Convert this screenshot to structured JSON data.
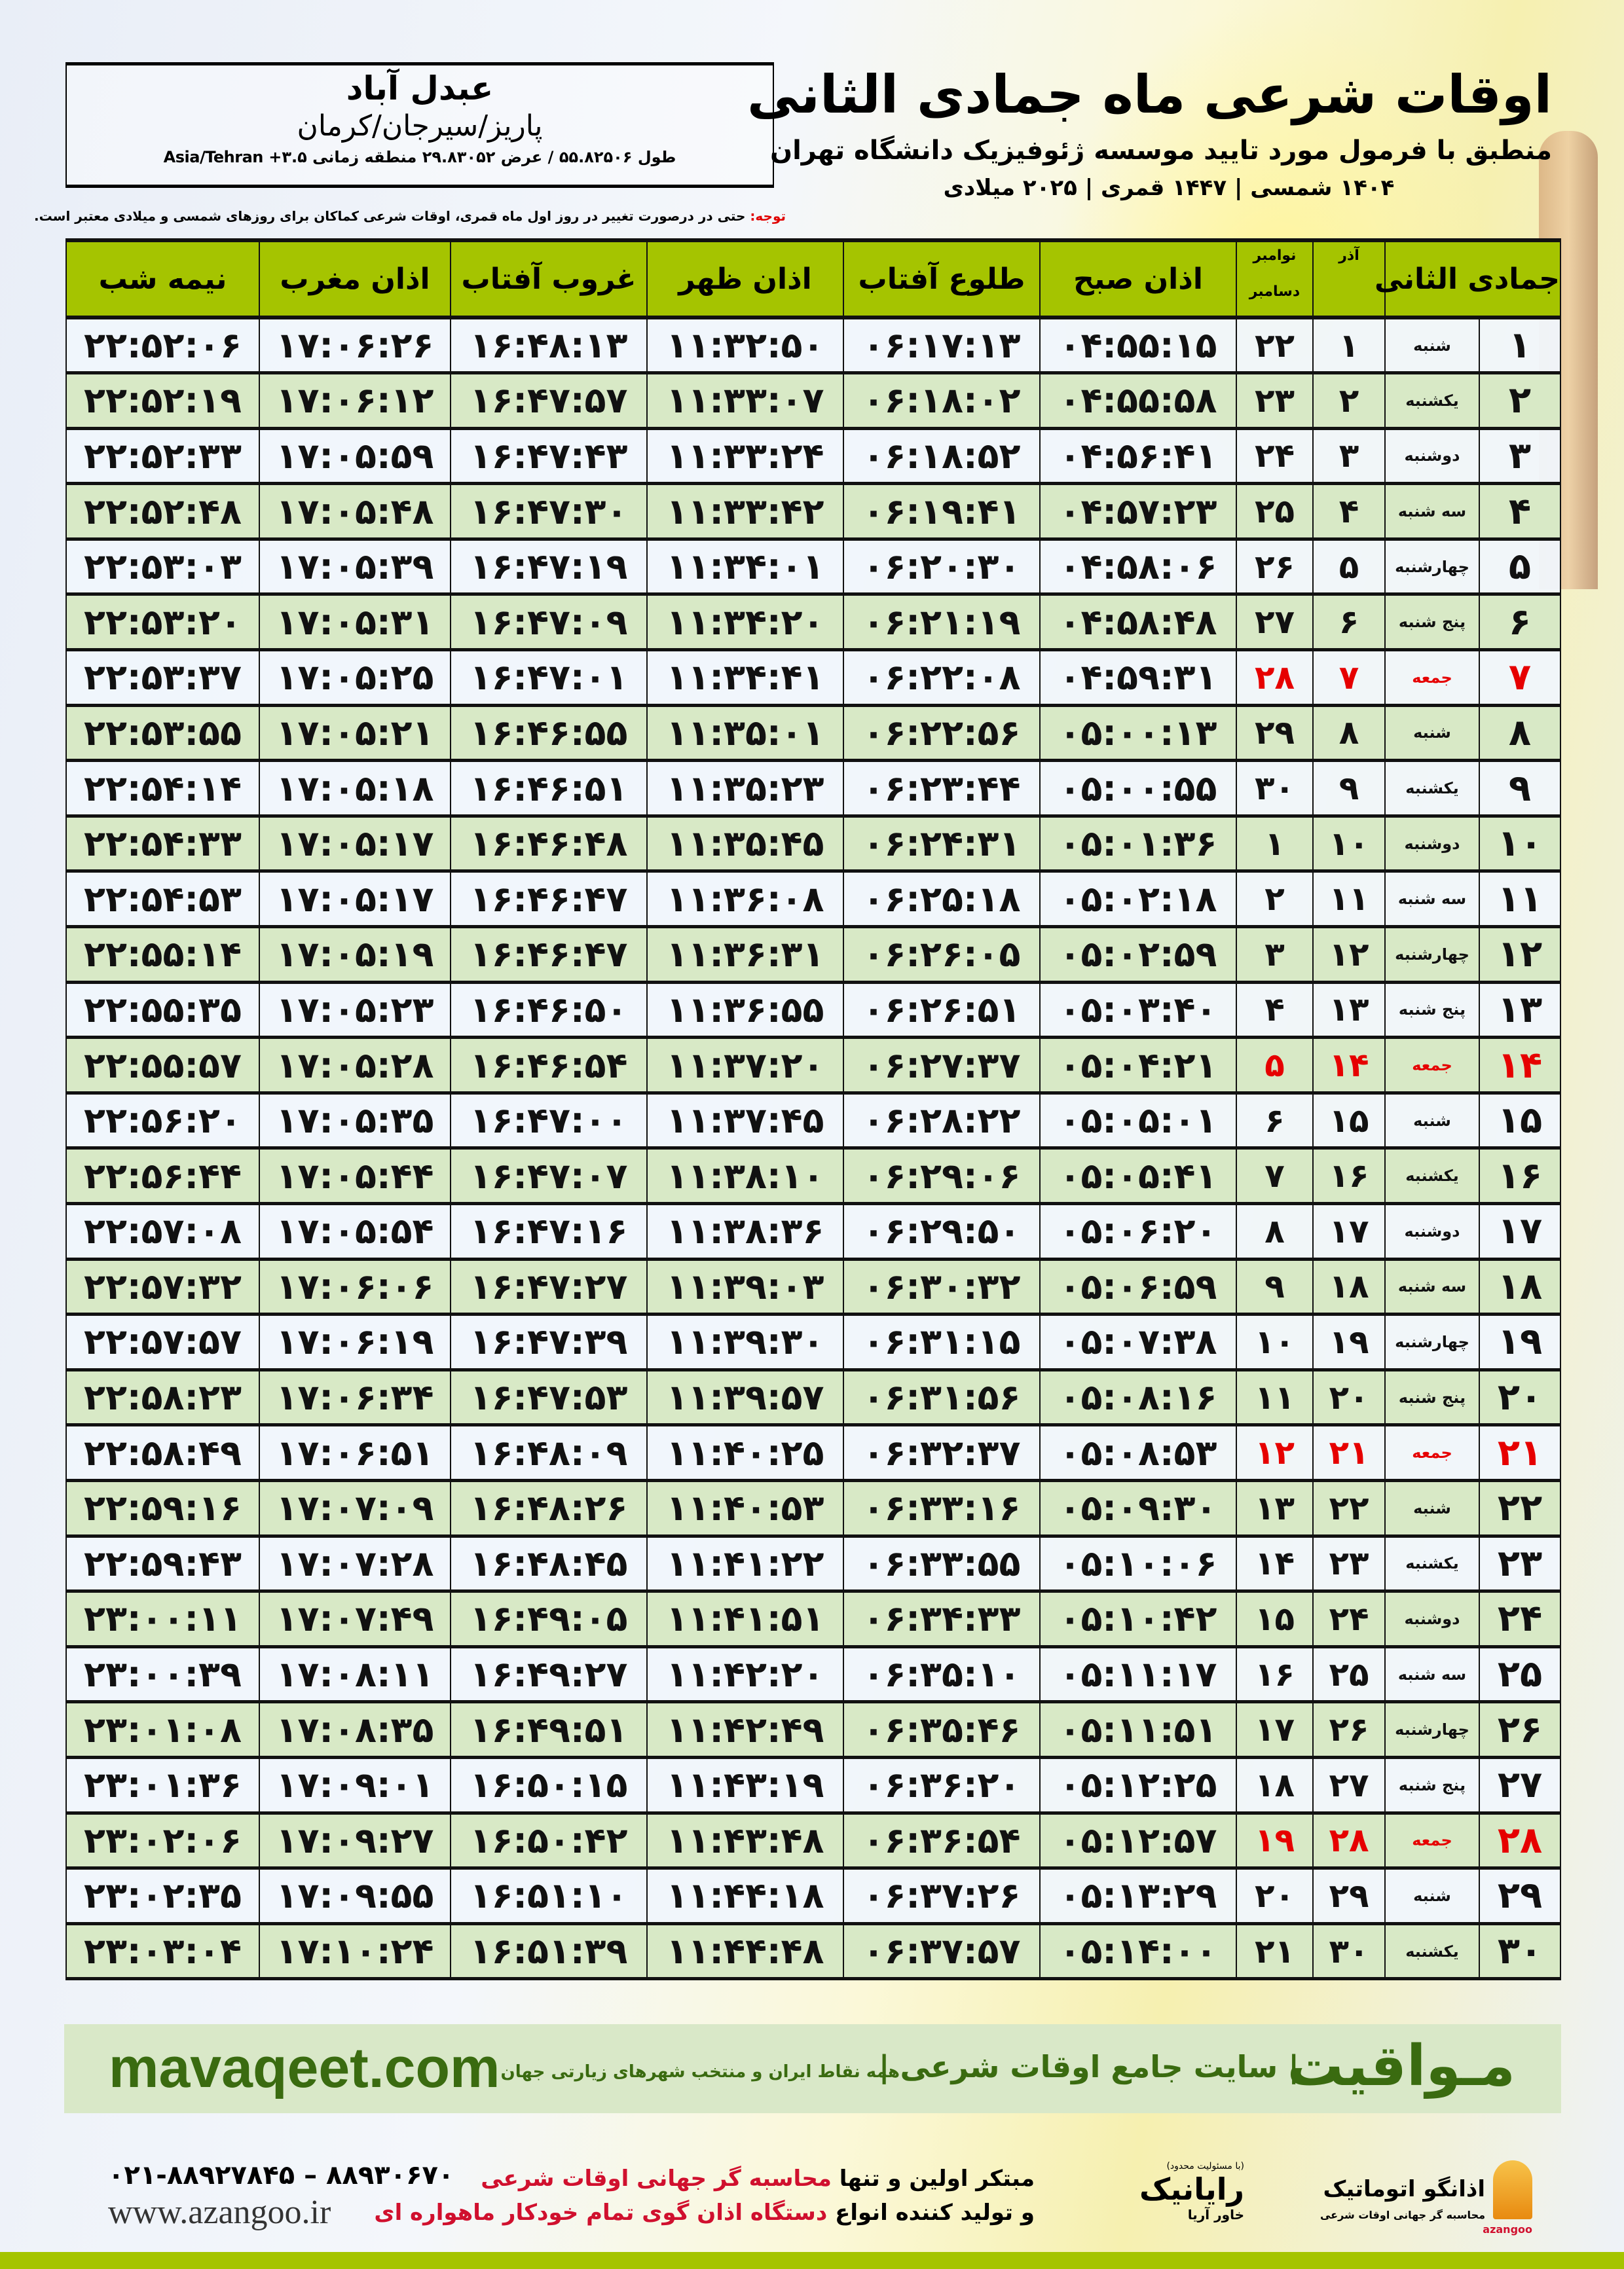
{
  "location": {
    "city": "عبدل آباد",
    "region": "پاریز/سیرجان/کرمان",
    "coords": "طول ۵۵.۸۲۵۰۶ / عرض ۲۹.۸۳۰۵۲ منطقه زمانی ۳.۵+ Asia/Tehran"
  },
  "header": {
    "title": "اوقات شرعی ماه جمادی الثانی",
    "subtitle": "منطبق با فرمول مورد تایید موسسه ژئوفیزیک دانشگاه تهران",
    "years": "۱۴۰۴ شمسی | ۱۴۴۷ قمری | ۲۰۲۵ میلادی"
  },
  "note": {
    "label": "توجه:",
    "text": " حتی در درصورت تغییر در روز اول ماه قمری، اوقات شرعی کماکان برای روزهای شمسی و میلادی معتبر است."
  },
  "columns": {
    "month": "جمادی الثانی",
    "azar": "آذر",
    "gregorian_top": "نوامبر",
    "gregorian_bottom": "دسامبر",
    "fajr": "اذان صبح",
    "sunrise": "طلوع آفتاب",
    "dhuhr": "اذان ظهر",
    "sunset": "غروب آفتاب",
    "maghrib": "اذان مغرب",
    "midnight": "نیمه شب"
  },
  "colors": {
    "header_green": "#a5c400",
    "row_green": "#d8e9c6",
    "holiday_red": "#e60000",
    "brand_green": "#3a6b10"
  },
  "rows": [
    [
      "۱",
      "شنبه",
      "۱",
      "۲۲",
      "۰۴:۵۵:۱۵",
      "۰۶:۱۷:۱۳",
      "۱۱:۳۲:۵۰",
      "۱۶:۴۸:۱۳",
      "۱۷:۰۶:۲۶",
      "۲۲:۵۲:۰۶"
    ],
    [
      "۲",
      "یکشنبه",
      "۲",
      "۲۳",
      "۰۴:۵۵:۵۸",
      "۰۶:۱۸:۰۲",
      "۱۱:۳۳:۰۷",
      "۱۶:۴۷:۵۷",
      "۱۷:۰۶:۱۲",
      "۲۲:۵۲:۱۹"
    ],
    [
      "۳",
      "دوشنبه",
      "۳",
      "۲۴",
      "۰۴:۵۶:۴۱",
      "۰۶:۱۸:۵۲",
      "۱۱:۳۳:۲۴",
      "۱۶:۴۷:۴۳",
      "۱۷:۰۵:۵۹",
      "۲۲:۵۲:۳۳"
    ],
    [
      "۴",
      "سه شنبه",
      "۴",
      "۲۵",
      "۰۴:۵۷:۲۳",
      "۰۶:۱۹:۴۱",
      "۱۱:۳۳:۴۲",
      "۱۶:۴۷:۳۰",
      "۱۷:۰۵:۴۸",
      "۲۲:۵۲:۴۸"
    ],
    [
      "۵",
      "چهارشنبه",
      "۵",
      "۲۶",
      "۰۴:۵۸:۰۶",
      "۰۶:۲۰:۳۰",
      "۱۱:۳۴:۰۱",
      "۱۶:۴۷:۱۹",
      "۱۷:۰۵:۳۹",
      "۲۲:۵۳:۰۳"
    ],
    [
      "۶",
      "پنج شنبه",
      "۶",
      "۲۷",
      "۰۴:۵۸:۴۸",
      "۰۶:۲۱:۱۹",
      "۱۱:۳۴:۲۰",
      "۱۶:۴۷:۰۹",
      "۱۷:۰۵:۳۱",
      "۲۲:۵۳:۲۰"
    ],
    [
      "۷",
      "جمعه",
      "۷",
      "۲۸",
      "۰۴:۵۹:۳۱",
      "۰۶:۲۲:۰۸",
      "۱۱:۳۴:۴۱",
      "۱۶:۴۷:۰۱",
      "۱۷:۰۵:۲۵",
      "۲۲:۵۳:۳۷"
    ],
    [
      "۸",
      "شنبه",
      "۸",
      "۲۹",
      "۰۵:۰۰:۱۳",
      "۰۶:۲۲:۵۶",
      "۱۱:۳۵:۰۱",
      "۱۶:۴۶:۵۵",
      "۱۷:۰۵:۲۱",
      "۲۲:۵۳:۵۵"
    ],
    [
      "۹",
      "یکشنبه",
      "۹",
      "۳۰",
      "۰۵:۰۰:۵۵",
      "۰۶:۲۳:۴۴",
      "۱۱:۳۵:۲۳",
      "۱۶:۴۶:۵۱",
      "۱۷:۰۵:۱۸",
      "۲۲:۵۴:۱۴"
    ],
    [
      "۱۰",
      "دوشنبه",
      "۱۰",
      "۱",
      "۰۵:۰۱:۳۶",
      "۰۶:۲۴:۳۱",
      "۱۱:۳۵:۴۵",
      "۱۶:۴۶:۴۸",
      "۱۷:۰۵:۱۷",
      "۲۲:۵۴:۳۳"
    ],
    [
      "۱۱",
      "سه شنبه",
      "۱۱",
      "۲",
      "۰۵:۰۲:۱۸",
      "۰۶:۲۵:۱۸",
      "۱۱:۳۶:۰۸",
      "۱۶:۴۶:۴۷",
      "۱۷:۰۵:۱۷",
      "۲۲:۵۴:۵۳"
    ],
    [
      "۱۲",
      "چهارشنبه",
      "۱۲",
      "۳",
      "۰۵:۰۲:۵۹",
      "۰۶:۲۶:۰۵",
      "۱۱:۳۶:۳۱",
      "۱۶:۴۶:۴۷",
      "۱۷:۰۵:۱۹",
      "۲۲:۵۵:۱۴"
    ],
    [
      "۱۳",
      "پنج شنبه",
      "۱۳",
      "۴",
      "۰۵:۰۳:۴۰",
      "۰۶:۲۶:۵۱",
      "۱۱:۳۶:۵۵",
      "۱۶:۴۶:۵۰",
      "۱۷:۰۵:۲۳",
      "۲۲:۵۵:۳۵"
    ],
    [
      "۱۴",
      "جمعه",
      "۱۴",
      "۵",
      "۰۵:۰۴:۲۱",
      "۰۶:۲۷:۳۷",
      "۱۱:۳۷:۲۰",
      "۱۶:۴۶:۵۴",
      "۱۷:۰۵:۲۸",
      "۲۲:۵۵:۵۷"
    ],
    [
      "۱۵",
      "شنبه",
      "۱۵",
      "۶",
      "۰۵:۰۵:۰۱",
      "۰۶:۲۸:۲۲",
      "۱۱:۳۷:۴۵",
      "۱۶:۴۷:۰۰",
      "۱۷:۰۵:۳۵",
      "۲۲:۵۶:۲۰"
    ],
    [
      "۱۶",
      "یکشنبه",
      "۱۶",
      "۷",
      "۰۵:۰۵:۴۱",
      "۰۶:۲۹:۰۶",
      "۱۱:۳۸:۱۰",
      "۱۶:۴۷:۰۷",
      "۱۷:۰۵:۴۴",
      "۲۲:۵۶:۴۴"
    ],
    [
      "۱۷",
      "دوشنبه",
      "۱۷",
      "۸",
      "۰۵:۰۶:۲۰",
      "۰۶:۲۹:۵۰",
      "۱۱:۳۸:۳۶",
      "۱۶:۴۷:۱۶",
      "۱۷:۰۵:۵۴",
      "۲۲:۵۷:۰۸"
    ],
    [
      "۱۸",
      "سه شنبه",
      "۱۸",
      "۹",
      "۰۵:۰۶:۵۹",
      "۰۶:۳۰:۳۲",
      "۱۱:۳۹:۰۳",
      "۱۶:۴۷:۲۷",
      "۱۷:۰۶:۰۶",
      "۲۲:۵۷:۳۲"
    ],
    [
      "۱۹",
      "چهارشنبه",
      "۱۹",
      "۱۰",
      "۰۵:۰۷:۳۸",
      "۰۶:۳۱:۱۵",
      "۱۱:۳۹:۳۰",
      "۱۶:۴۷:۳۹",
      "۱۷:۰۶:۱۹",
      "۲۲:۵۷:۵۷"
    ],
    [
      "۲۰",
      "پنج شنبه",
      "۲۰",
      "۱۱",
      "۰۵:۰۸:۱۶",
      "۰۶:۳۱:۵۶",
      "۱۱:۳۹:۵۷",
      "۱۶:۴۷:۵۳",
      "۱۷:۰۶:۳۴",
      "۲۲:۵۸:۲۳"
    ],
    [
      "۲۱",
      "جمعه",
      "۲۱",
      "۱۲",
      "۰۵:۰۸:۵۳",
      "۰۶:۳۲:۳۷",
      "۱۱:۴۰:۲۵",
      "۱۶:۴۸:۰۹",
      "۱۷:۰۶:۵۱",
      "۲۲:۵۸:۴۹"
    ],
    [
      "۲۲",
      "شنبه",
      "۲۲",
      "۱۳",
      "۰۵:۰۹:۳۰",
      "۰۶:۳۳:۱۶",
      "۱۱:۴۰:۵۳",
      "۱۶:۴۸:۲۶",
      "۱۷:۰۷:۰۹",
      "۲۲:۵۹:۱۶"
    ],
    [
      "۲۳",
      "یکشنبه",
      "۲۳",
      "۱۴",
      "۰۵:۱۰:۰۶",
      "۰۶:۳۳:۵۵",
      "۱۱:۴۱:۲۲",
      "۱۶:۴۸:۴۵",
      "۱۷:۰۷:۲۸",
      "۲۲:۵۹:۴۳"
    ],
    [
      "۲۴",
      "دوشنبه",
      "۲۴",
      "۱۵",
      "۰۵:۱۰:۴۲",
      "۰۶:۳۴:۳۳",
      "۱۱:۴۱:۵۱",
      "۱۶:۴۹:۰۵",
      "۱۷:۰۷:۴۹",
      "۲۳:۰۰:۱۱"
    ],
    [
      "۲۵",
      "سه شنبه",
      "۲۵",
      "۱۶",
      "۰۵:۱۱:۱۷",
      "۰۶:۳۵:۱۰",
      "۱۱:۴۲:۲۰",
      "۱۶:۴۹:۲۷",
      "۱۷:۰۸:۱۱",
      "۲۳:۰۰:۳۹"
    ],
    [
      "۲۶",
      "چهارشنبه",
      "۲۶",
      "۱۷",
      "۰۵:۱۱:۵۱",
      "۰۶:۳۵:۴۶",
      "۱۱:۴۲:۴۹",
      "۱۶:۴۹:۵۱",
      "۱۷:۰۸:۳۵",
      "۲۳:۰۱:۰۸"
    ],
    [
      "۲۷",
      "پنج شنبه",
      "۲۷",
      "۱۸",
      "۰۵:۱۲:۲۵",
      "۰۶:۳۶:۲۰",
      "۱۱:۴۳:۱۹",
      "۱۶:۵۰:۱۵",
      "۱۷:۰۹:۰۱",
      "۲۳:۰۱:۳۶"
    ],
    [
      "۲۸",
      "جمعه",
      "۲۸",
      "۱۹",
      "۰۵:۱۲:۵۷",
      "۰۶:۳۶:۵۴",
      "۱۱:۴۳:۴۸",
      "۱۶:۵۰:۴۲",
      "۱۷:۰۹:۲۷",
      "۲۳:۰۲:۰۶"
    ],
    [
      "۲۹",
      "شنبه",
      "۲۹",
      "۲۰",
      "۰۵:۱۳:۲۹",
      "۰۶:۳۷:۲۶",
      "۱۱:۴۴:۱۸",
      "۱۶:۵۱:۱۰",
      "۱۷:۰۹:۵۵",
      "۲۳:۰۲:۳۵"
    ],
    [
      "۳۰",
      "یکشنبه",
      "۳۰",
      "۲۱",
      "۰۵:۱۴:۰۰",
      "۰۶:۳۷:۵۷",
      "۱۱:۴۴:۴۸",
      "۱۶:۵۱:۳۹",
      "۱۷:۱۰:۲۴",
      "۲۳:۰۳:۰۴"
    ]
  ],
  "holiday_weekday": "جمعه",
  "footer": {
    "site": "mavaqeet.com",
    "brand": "مـواقیت",
    "slogan": "| سایت جامع اوقات شرعی |",
    "slogan2": "همه نقاط ایران و منتخب شهرهای زیارتی جهان",
    "phone": "۰۲۱-۸۸۹۲۷۸۴۵ – ۸۸۹۳۰۶۷۰",
    "www": "www.azangoo.ir",
    "promo1a": "مبتکر اولین و تنها ",
    "promo1b": "محاسبه گر جهانی اوقات شرعی",
    "promo2a": "و تولید کننده انواع ",
    "promo2b": "دستگاه اذان گوی تمام خودکار ماهواره ای",
    "logo1_note": "(با مسئولیت محدود)",
    "logo1_name": "رایانیک",
    "logo1_sub": "خاور آریا",
    "logo2_name": "اذانگو اتوماتیک",
    "logo2_tag": "محاسبه گر جهانی اوقات شرعی",
    "logo2_en": "azangoo"
  }
}
